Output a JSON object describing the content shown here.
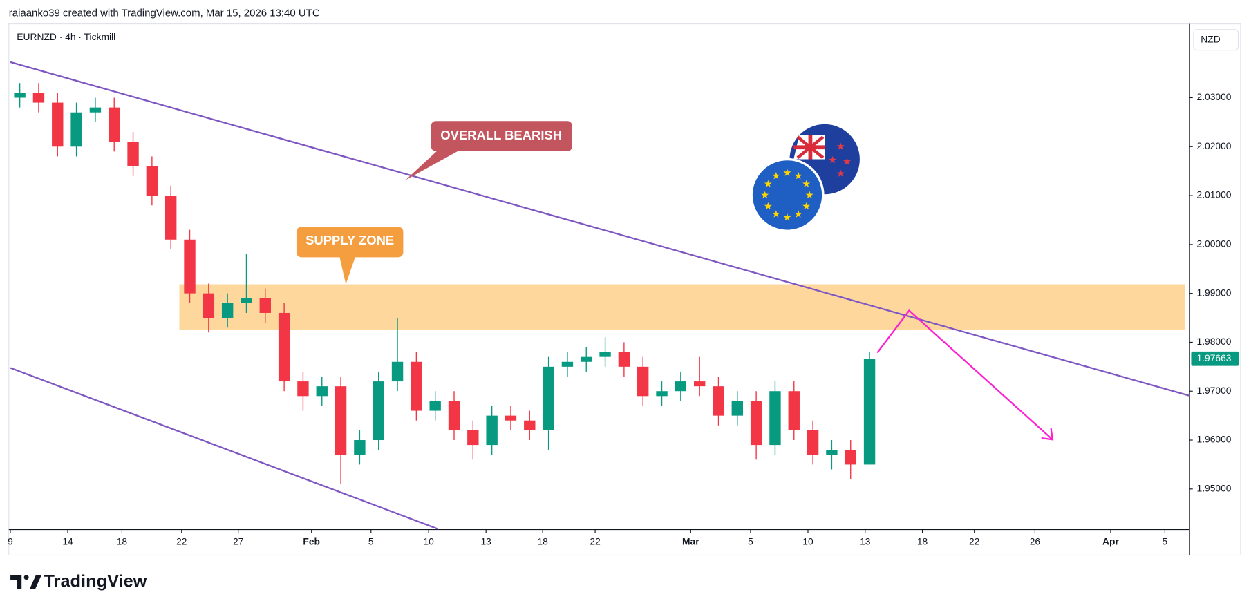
{
  "header": "raiaanko39 created with TradingView.com, Mar 15, 2026 13:40 UTC",
  "brand": "TradingView",
  "annotations": [
    "OVERALL BEARISH",
    "SUPPLY ZONE"
  ],
  "chart_data": {
    "type": "candlestick",
    "title": "EURNZD · 4h · Tickmill",
    "currency": "NZD",
    "up_color": "#089981",
    "down_color": "#f23645",
    "x": [
      0.5,
      1.5,
      2.5,
      3.5,
      4.5,
      5.5,
      6.5,
      7.5,
      8.5,
      9.5,
      10.5,
      11.5,
      12.5,
      13.5,
      14.5,
      15.5,
      16.5,
      17.5,
      18.5,
      19.5,
      20.5,
      21.5,
      22.5,
      23.5,
      24.5,
      25.5,
      26.5,
      27.5,
      28.5,
      29.5,
      30.5,
      31.5,
      32.5,
      33.5,
      34.5,
      35.5,
      36.5,
      37.5,
      38.5,
      39.5,
      40.5,
      41.5,
      42.5,
      43.5,
      44.5,
      45.5
    ],
    "open": [
      2.03,
      2.031,
      2.029,
      2.02,
      2.027,
      2.028,
      2.021,
      2.016,
      2.01,
      2.001,
      1.99,
      1.985,
      1.988,
      1.989,
      1.986,
      1.972,
      1.969,
      1.971,
      1.957,
      1.96,
      1.972,
      1.976,
      1.966,
      1.968,
      1.962,
      1.959,
      1.965,
      1.964,
      1.962,
      1.975,
      1.976,
      1.977,
      1.978,
      1.975,
      1.969,
      1.97,
      1.972,
      1.971,
      1.965,
      1.968,
      1.959,
      1.97,
      1.962,
      1.957,
      1.958,
      1.955
    ],
    "high": [
      2.033,
      2.033,
      2.031,
      2.029,
      2.03,
      2.03,
      2.023,
      2.018,
      2.012,
      2.003,
      1.992,
      1.99,
      1.998,
      1.991,
      1.988,
      1.974,
      1.973,
      1.973,
      1.962,
      1.974,
      1.985,
      1.978,
      1.97,
      1.97,
      1.964,
      1.967,
      1.967,
      1.966,
      1.977,
      1.978,
      1.979,
      1.981,
      1.98,
      1.977,
      1.972,
      1.974,
      1.977,
      1.973,
      1.97,
      1.97,
      1.972,
      1.972,
      1.964,
      1.96,
      1.96,
      1.978
    ],
    "low": [
      2.028,
      2.027,
      2.018,
      2.018,
      2.025,
      2.019,
      2.014,
      2.008,
      1.999,
      1.988,
      1.982,
      1.983,
      1.986,
      1.984,
      1.97,
      1.966,
      1.967,
      1.951,
      1.955,
      1.958,
      1.97,
      1.964,
      1.964,
      1.96,
      1.956,
      1.957,
      1.962,
      1.96,
      1.958,
      1.973,
      1.974,
      1.975,
      1.973,
      1.967,
      1.967,
      1.968,
      1.969,
      1.963,
      1.963,
      1.956,
      1.957,
      1.96,
      1.955,
      1.954,
      1.952,
      1.955
    ],
    "close": [
      2.031,
      2.029,
      2.02,
      2.027,
      2.028,
      2.021,
      2.016,
      2.01,
      2.001,
      1.99,
      1.985,
      1.988,
      1.989,
      1.986,
      1.972,
      1.969,
      1.971,
      1.957,
      1.96,
      1.972,
      1.976,
      1.966,
      1.968,
      1.962,
      1.959,
      1.965,
      1.964,
      1.962,
      1.975,
      1.976,
      1.977,
      1.978,
      1.975,
      1.969,
      1.97,
      1.972,
      1.971,
      1.965,
      1.968,
      1.959,
      1.97,
      1.962,
      1.957,
      1.958,
      1.955,
      1.97663
    ],
    "xlim": [
      -0.08,
      62.45
    ],
    "ylim": [
      1.9417,
      2.0451
    ],
    "yticks": [
      {
        "value": 1.95,
        "label": "1.95000"
      },
      {
        "value": 1.96,
        "label": "1.96000"
      },
      {
        "value": 1.97,
        "label": "1.97000"
      },
      {
        "value": 1.98,
        "label": "1.98000"
      },
      {
        "value": 1.99,
        "label": "1.99000"
      },
      {
        "value": 2.0,
        "label": "2.00000"
      },
      {
        "value": 2.01,
        "label": "2.01000"
      },
      {
        "value": 2.02,
        "label": "2.02000"
      },
      {
        "value": 2.03,
        "label": "2.03000"
      }
    ],
    "xticks": [
      {
        "value": 0,
        "label": "9"
      },
      {
        "value": 3.04,
        "label": "14"
      },
      {
        "value": 5.91,
        "label": "18"
      },
      {
        "value": 9.07,
        "label": "22"
      },
      {
        "value": 12.07,
        "label": "27"
      },
      {
        "value": 15.95,
        "label": "Feb"
      },
      {
        "value": 19.1,
        "label": "5"
      },
      {
        "value": 22.15,
        "label": "10"
      },
      {
        "value": 25.19,
        "label": "13"
      },
      {
        "value": 28.19,
        "label": "18"
      },
      {
        "value": 30.97,
        "label": "22"
      },
      {
        "value": 36.03,
        "label": "Mar"
      },
      {
        "value": 39.2,
        "label": "5"
      },
      {
        "value": 42.24,
        "label": "10"
      },
      {
        "value": 45.27,
        "label": "13"
      },
      {
        "value": 48.3,
        "label": "18"
      },
      {
        "value": 51.05,
        "label": "22"
      },
      {
        "value": 54.26,
        "label": "26"
      },
      {
        "value": 58.27,
        "label": "Apr"
      },
      {
        "value": 61.14,
        "label": "5"
      }
    ]
  }
}
